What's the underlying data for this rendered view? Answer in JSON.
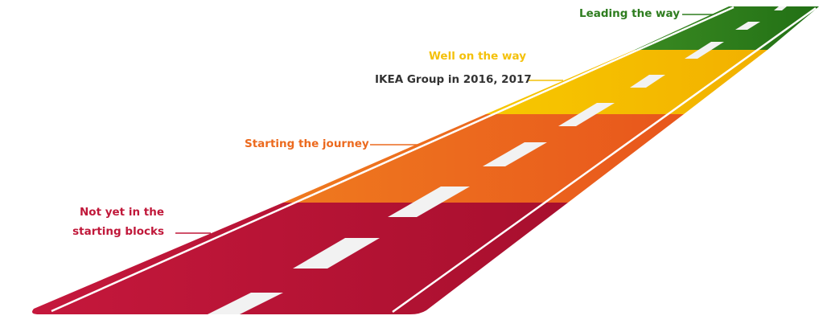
{
  "stages": [
    {
      "id": "leading",
      "label": "Leading the way",
      "color": "#2e7d1f"
    },
    {
      "id": "well",
      "label": "Well on the way",
      "color": "#f4c10a"
    },
    {
      "id": "starting",
      "label": "Starting the journey",
      "color": "#ec6a1e"
    },
    {
      "id": "notyet",
      "label_line1": "Not yet in the",
      "label_line2": "starting blocks",
      "color": "#c0183a"
    }
  ],
  "marker": {
    "label": "IKEA Group in 2016, 2017",
    "color": "#333333"
  }
}
